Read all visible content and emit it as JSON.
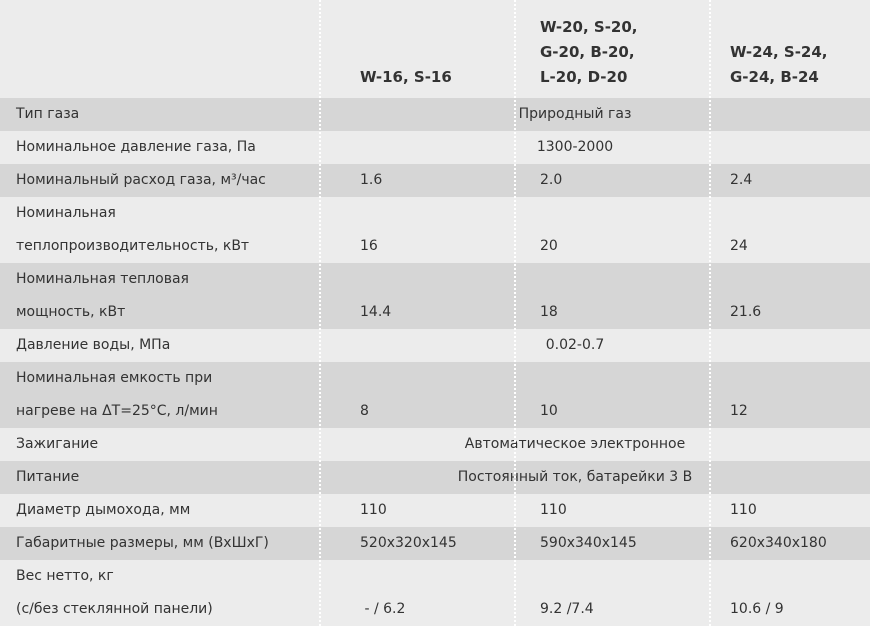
{
  "table": {
    "columns": [
      [
        "W-16, S-16"
      ],
      [
        "W-20, S-20,",
        "G-20, B-20,",
        "L-20, D-20"
      ],
      [
        "W-24, S-24,",
        "G-24, B-24"
      ]
    ],
    "rows": [
      {
        "label": [
          "Тип газа"
        ],
        "values": [
          "Природный газ"
        ]
      },
      {
        "label": [
          "Номинальное давление газа, Па"
        ],
        "values": [
          "1300-2000"
        ]
      },
      {
        "label": [
          "Номинальный расход газа, м³/час"
        ],
        "values": [
          "1.6",
          "2.0",
          "2.4"
        ]
      },
      {
        "label": [
          "Номинальная",
          "теплопроизводительность, кВт"
        ],
        "values": [
          "16",
          "20",
          "24"
        ]
      },
      {
        "label": [
          "Номинальная тепловая",
          "мощность, кВт"
        ],
        "values": [
          "14.4",
          "18",
          "21.6"
        ]
      },
      {
        "label": [
          "Давление воды, МПа"
        ],
        "values": [
          "0.02-0.7"
        ]
      },
      {
        "label": [
          "Номинальная емкость при",
          "нагреве на ΔT=25°C, л/мин"
        ],
        "values": [
          "8",
          "10",
          "12"
        ]
      },
      {
        "label": [
          "Зажигание"
        ],
        "values": [
          "Автоматическое электронное"
        ]
      },
      {
        "label": [
          "Питание"
        ],
        "values": [
          "Постоянный ток, батарейки 3 В"
        ]
      },
      {
        "label": [
          "Диаметр дымохода, мм"
        ],
        "values": [
          "110",
          "110",
          "110"
        ]
      },
      {
        "label": [
          "Габаритные размеры, мм (ВхШхГ)"
        ],
        "values": [
          "520x320x145",
          "590x340x145",
          "620x340x180"
        ]
      },
      {
        "label": [
          "Вес нетто, кг",
          "(с/без стеклянной панели)"
        ],
        "values": [
          " - / 6.2",
          "9.2 /7.4",
          "10.6 / 9"
        ]
      }
    ]
  }
}
